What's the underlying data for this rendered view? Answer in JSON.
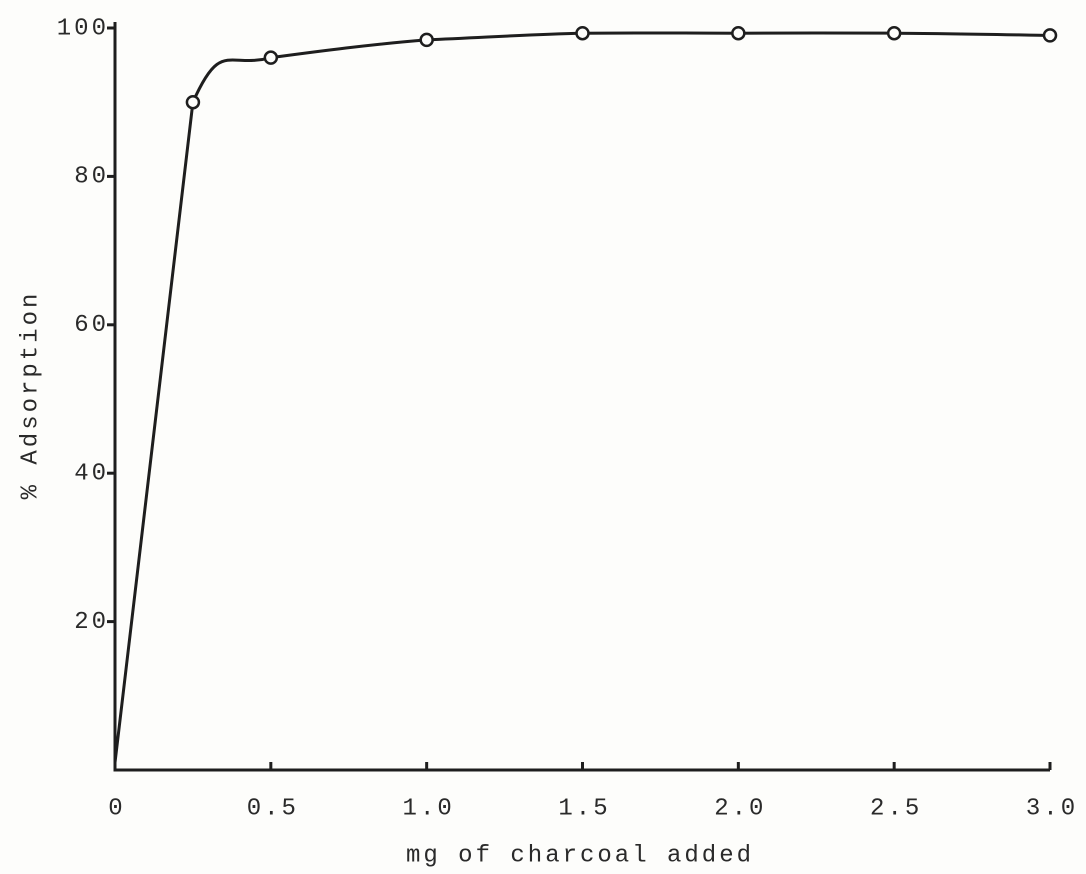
{
  "chart_data": {
    "type": "line",
    "x_label": "mg of charcoal added",
    "y_label": "% Adsorption",
    "x": [
      0,
      0.25,
      0.5,
      1,
      1.5,
      2,
      2.5,
      3
    ],
    "series": [
      {
        "color": "#1e1e1e",
        "values": [
          1,
          90,
          96,
          98.4,
          99.3,
          99.3,
          99.3,
          99
        ],
        "markers": [
          false,
          true,
          true,
          true,
          true,
          true,
          true,
          true
        ]
      }
    ],
    "xlim": [
      0,
      3
    ],
    "ylim": [
      0,
      100
    ],
    "xticks": [
      0,
      0.5,
      {
        "value": 1,
        "label": "1.0"
      },
      1.5,
      {
        "value": 2,
        "label": "2.0"
      },
      2.5,
      {
        "value": 3,
        "label": "3.0"
      }
    ],
    "yticks": [
      20,
      40,
      60,
      80,
      100
    ]
  }
}
